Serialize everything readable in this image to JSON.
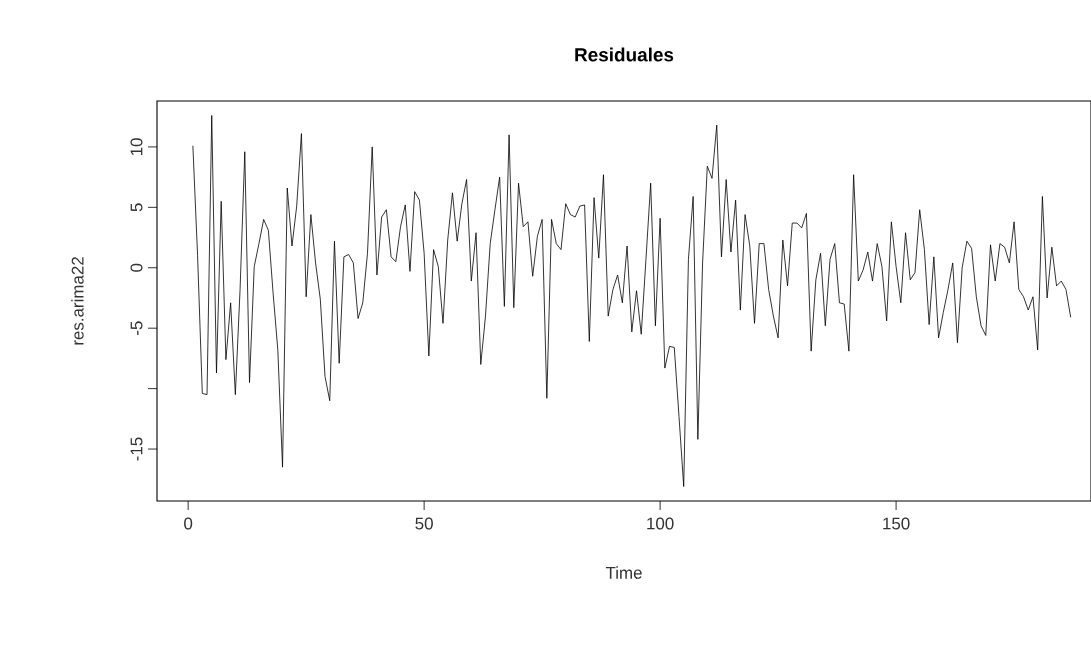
{
  "chart_data": {
    "type": "line",
    "title": "Residuales",
    "xlabel": "Time",
    "ylabel": "res.arima22",
    "x": [
      1,
      2,
      3,
      4,
      5,
      6,
      7,
      8,
      9,
      10,
      11,
      12,
      13,
      14,
      15,
      16,
      17,
      18,
      19,
      20,
      21,
      22,
      23,
      24,
      25,
      26,
      27,
      28,
      29,
      30,
      31,
      32,
      33,
      34,
      35,
      36,
      37,
      38,
      39,
      40,
      41,
      42,
      43,
      44,
      45,
      46,
      47,
      48,
      49,
      50,
      51,
      52,
      53,
      54,
      55,
      56,
      57,
      58,
      59,
      60,
      61,
      62,
      63,
      64,
      65,
      66,
      67,
      68,
      69,
      70,
      71,
      72,
      73,
      74,
      75,
      76,
      77,
      78,
      79,
      80,
      81,
      82,
      83,
      84,
      85,
      86,
      87,
      88,
      89,
      90,
      91,
      92,
      93,
      94,
      95,
      96,
      97,
      98,
      99,
      100,
      101,
      102,
      103,
      104,
      105,
      106,
      107,
      108,
      109,
      110,
      111,
      112,
      113,
      114,
      115,
      116,
      117,
      118,
      119,
      120,
      121,
      122,
      123,
      124,
      125,
      126,
      127,
      128,
      129,
      130,
      131,
      132,
      133,
      134,
      135,
      136,
      137,
      138,
      139,
      140,
      141,
      142,
      143,
      144,
      145,
      146,
      147,
      148,
      149,
      150,
      151,
      152,
      153,
      154,
      155,
      156,
      157,
      158,
      159,
      160,
      161,
      162,
      163,
      164,
      165,
      166,
      167,
      168,
      169,
      170,
      171,
      172,
      173,
      174,
      175,
      176,
      177,
      178,
      179,
      180,
      181,
      182,
      183,
      184,
      185,
      186,
      187
    ],
    "values": [
      10.1,
      1.0,
      -10.4,
      -10.5,
      12.6,
      -8.7,
      5.5,
      -7.6,
      -2.9,
      -10.5,
      -1.8,
      9.6,
      -9.5,
      0.1,
      2.0,
      4.0,
      3.1,
      -2.1,
      -6.8,
      -16.5,
      6.6,
      1.8,
      5.1,
      11.1,
      -2.4,
      4.4,
      0.4,
      -2.6,
      -9.0,
      -11.0,
      2.2,
      -7.9,
      0.9,
      1.1,
      0.4,
      -4.2,
      -2.9,
      1.2,
      10.0,
      -0.6,
      4.2,
      4.8,
      0.9,
      0.5,
      3.4,
      5.2,
      -0.3,
      6.3,
      5.6,
      1.2,
      -7.3,
      1.5,
      0.1,
      -4.6,
      2.3,
      6.2,
      2.2,
      5.3,
      7.3,
      -1.1,
      2.9,
      -8.0,
      -4.0,
      2.0,
      4.8,
      7.5,
      -3.2,
      11.0,
      -3.3,
      7.0,
      3.4,
      3.8,
      -0.7,
      2.6,
      4.0,
      -10.8,
      4.0,
      2.0,
      1.5,
      5.3,
      4.4,
      4.2,
      5.1,
      5.2,
      -6.1,
      5.8,
      0.8,
      7.7,
      -4.0,
      -1.8,
      -0.6,
      -2.9,
      1.8,
      -5.3,
      -1.9,
      -5.5,
      0.7,
      7.0,
      -4.8,
      4.1,
      -8.3,
      -6.5,
      -6.6,
      -12.3,
      -18.1,
      0.7,
      5.9,
      -14.2,
      0.4,
      8.4,
      7.4,
      11.8,
      0.9,
      7.3,
      1.3,
      5.6,
      -3.5,
      4.4,
      1.8,
      -4.6,
      2.0,
      2.0,
      -1.8,
      -4.0,
      -5.8,
      2.3,
      -1.5,
      3.7,
      3.7,
      3.3,
      4.5,
      -6.9,
      -1.0,
      1.2,
      -4.8,
      0.7,
      2.0,
      -2.9,
      -3.0,
      -6.9,
      7.7,
      -1.1,
      -0.2,
      1.3,
      -1.1,
      2.0,
      0.1,
      -4.4,
      3.8,
      0.1,
      -2.9,
      2.9,
      -1.0,
      -0.4,
      4.8,
      1.5,
      -4.7,
      0.9,
      -5.8,
      -3.7,
      -1.8,
      0.4,
      -6.2,
      0.0,
      2.2,
      1.6,
      -2.4,
      -4.8,
      -5.6,
      1.9,
      -1.1,
      2.0,
      1.7,
      0.4,
      3.8,
      -1.8,
      -2.4,
      -3.5,
      -2.4,
      -6.8,
      5.9,
      -2.5,
      1.7,
      -1.5,
      -1.1,
      -1.8,
      -4.1
    ],
    "color": "#000000",
    "xlim": [
      -6.6,
      191.3
    ],
    "ylim": [
      -19.3,
      13.8
    ],
    "xticks": [
      0,
      50,
      100,
      150
    ],
    "yticks": [
      -15,
      {
        "value": -10,
        "label": null
      },
      -5,
      0,
      5,
      10
    ]
  }
}
